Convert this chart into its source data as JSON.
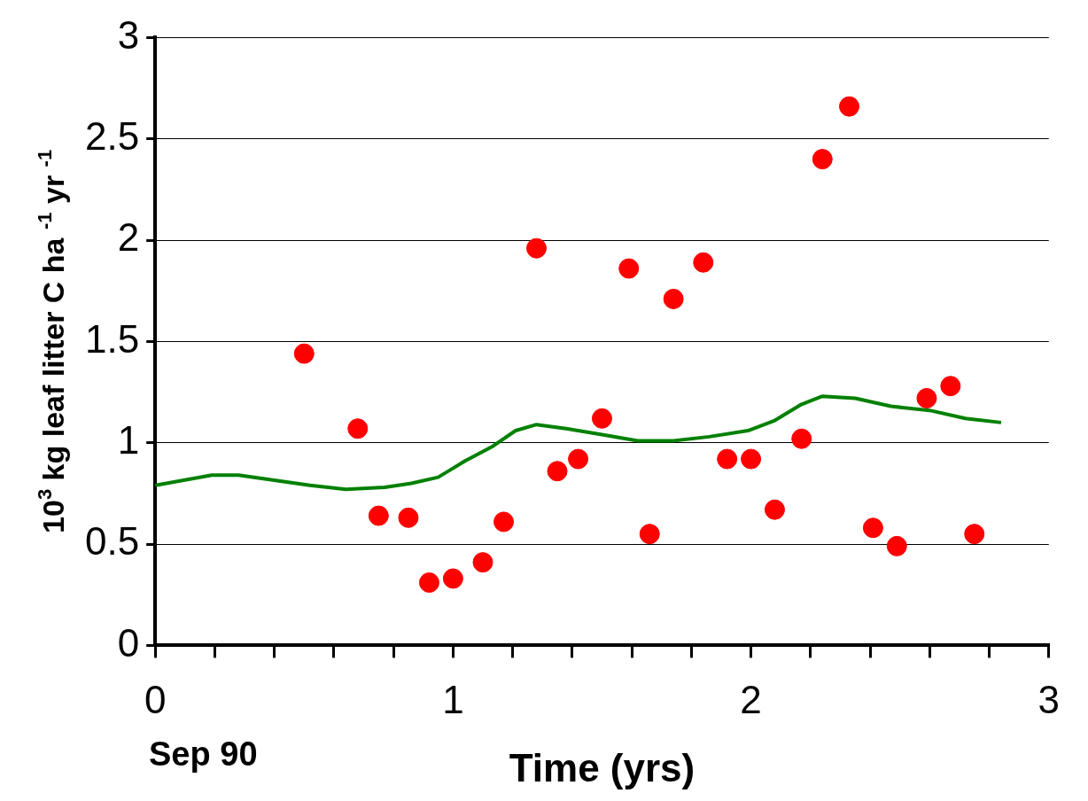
{
  "chart_data": {
    "type": "scatter",
    "xlabel": "Time (yrs)",
    "ylabel": "10$^{3}$ kg leaf litter C ha $^{-1}$ yr $^{-1}$",
    "annotations": [
      "Sep 90"
    ],
    "xlim": [
      0,
      3
    ],
    "ylim": [
      0,
      3
    ],
    "xticks": [
      0,
      {
        "value": 0.2,
        "label": null
      },
      {
        "value": 0.4,
        "label": null
      },
      {
        "value": 0.6,
        "label": null
      },
      {
        "value": 0.8,
        "label": null
      },
      1,
      {
        "value": 1.2,
        "label": null
      },
      {
        "value": 1.4,
        "label": null
      },
      {
        "value": 1.6,
        "label": null
      },
      {
        "value": 1.8,
        "label": null
      },
      2,
      {
        "value": 2.2,
        "label": null
      },
      {
        "value": 2.4,
        "label": null
      },
      {
        "value": 2.6,
        "label": null
      },
      {
        "value": 2.8,
        "label": null
      },
      3
    ],
    "yticks": [
      0,
      0.5,
      1,
      1.5,
      2,
      2.5,
      3
    ],
    "grid": "y",
    "legend": false,
    "series": [
      {
        "type": "scatter",
        "color": "#ff0000",
        "marker": "circle",
        "x": [
          0.5,
          0.68,
          0.75,
          0.85,
          0.92,
          1.0,
          1.1,
          1.17,
          1.28,
          1.35,
          1.42,
          1.5,
          1.59,
          1.66,
          1.74,
          1.84,
          1.92,
          2.0,
          2.08,
          2.17,
          2.24,
          2.33,
          2.41,
          2.49,
          2.59,
          2.67,
          2.75
        ],
        "values": [
          1.44,
          1.07,
          0.64,
          0.63,
          0.31,
          0.33,
          0.41,
          0.61,
          1.96,
          0.86,
          0.92,
          1.12,
          1.86,
          0.55,
          1.71,
          1.89,
          0.92,
          0.92,
          0.67,
          1.02,
          2.4,
          2.66,
          0.58,
          0.49,
          1.22,
          1.28,
          0.55
        ]
      },
      {
        "type": "line",
        "color": "#008000",
        "marker": "none",
        "line_style": "solid",
        "x": [
          0,
          0.19,
          0.28,
          0.52,
          0.64,
          0.77,
          0.86,
          0.95,
          1.04,
          1.13,
          1.21,
          1.28,
          1.38,
          1.5,
          1.62,
          1.74,
          1.86,
          1.99,
          2.08,
          2.17,
          2.24,
          2.35,
          2.47,
          2.6,
          2.72,
          2.84
        ],
        "values": [
          0.79,
          0.84,
          0.84,
          0.79,
          0.77,
          0.78,
          0.8,
          0.83,
          0.91,
          0.98,
          1.06,
          1.09,
          1.07,
          1.04,
          1.01,
          1.01,
          1.03,
          1.06,
          1.11,
          1.19,
          1.23,
          1.22,
          1.18,
          1.16,
          1.12,
          1.1
        ]
      }
    ]
  }
}
